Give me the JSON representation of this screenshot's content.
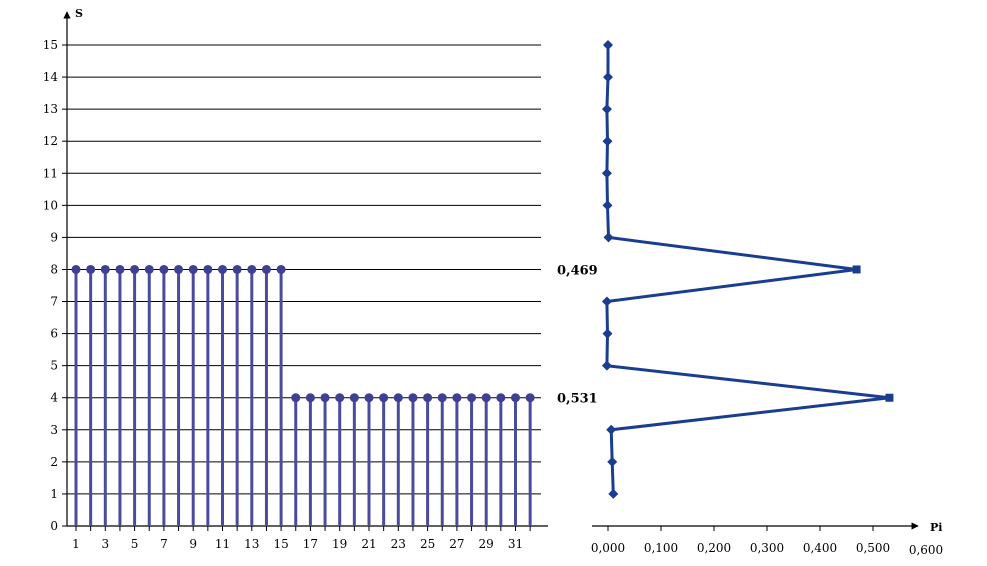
{
  "colors": {
    "stem": "#4b4b9e",
    "stem_marker": "#3f3f93",
    "profile_line": "#1a3d8f",
    "grid": "#000000",
    "text": "#000000"
  },
  "chart_data": [
    {
      "type": "stem",
      "ylabel": "S",
      "xlabel": "",
      "ylim": [
        0,
        15
      ],
      "xlim": [
        0,
        32
      ],
      "y_ticks": [
        "0",
        "1",
        "2",
        "3",
        "4",
        "5",
        "6",
        "7",
        "8",
        "9",
        "10",
        "11",
        "12",
        "13",
        "14",
        "15"
      ],
      "x_tick_labels": [
        "1",
        "3",
        "5",
        "7",
        "9",
        "11",
        "13",
        "15",
        "17",
        "19",
        "21",
        "23",
        "25",
        "27",
        "29",
        "31"
      ],
      "grid": "horizontal",
      "series": [
        {
          "x": [
            1,
            2,
            3,
            4,
            5,
            6,
            7,
            8,
            9,
            10,
            11,
            12,
            13,
            14,
            15,
            16,
            17,
            18,
            19,
            20,
            21,
            22,
            23,
            24,
            25,
            26,
            27,
            28,
            29,
            30,
            31,
            32
          ],
          "values": [
            8,
            8,
            8,
            8,
            8,
            8,
            8,
            8,
            8,
            8,
            8,
            8,
            8,
            8,
            8,
            4,
            4,
            4,
            4,
            4,
            4,
            4,
            4,
            4,
            4,
            4,
            4,
            4,
            4,
            4,
            4,
            4
          ]
        }
      ]
    },
    {
      "type": "line",
      "xlabel": "Pi",
      "ylabel": "",
      "xlim": [
        0,
        0.6
      ],
      "ylim": [
        0,
        15
      ],
      "x_tick_labels": [
        "0,000",
        "0,100",
        "0,200",
        "0,300",
        "0,400",
        "0,500",
        "0,600"
      ],
      "grid": "none",
      "series": [
        {
          "points": [
            {
              "x": 0.01,
              "y": 1
            },
            {
              "x": 0.008,
              "y": 2
            },
            {
              "x": 0.006,
              "y": 3
            },
            {
              "x": 0.531,
              "y": 4
            },
            {
              "x": -0.002,
              "y": 5
            },
            {
              "x": -0.001,
              "y": 6
            },
            {
              "x": -0.002,
              "y": 7
            },
            {
              "x": 0.469,
              "y": 8
            },
            {
              "x": 0.001,
              "y": 9
            },
            {
              "x": -0.001,
              "y": 10
            },
            {
              "x": -0.002,
              "y": 11
            },
            {
              "x": -0.001,
              "y": 12
            },
            {
              "x": -0.002,
              "y": 13
            },
            {
              "x": 0.0,
              "y": 14
            },
            {
              "x": 0.0,
              "y": 15
            }
          ]
        }
      ],
      "annotations": [
        {
          "text": "0,469",
          "y": 8
        },
        {
          "text": "0,531",
          "y": 4
        }
      ]
    }
  ]
}
